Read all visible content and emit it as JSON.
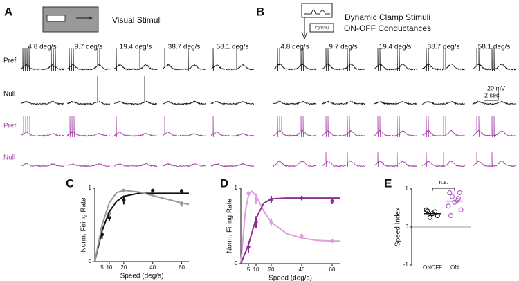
{
  "figure": {
    "panel_A": {
      "label": "A",
      "title": "Visual Stimuli",
      "speeds": [
        "4.8 deg/s",
        "9.7 deg/s",
        "19.4 deg/s",
        "38.7 deg/s",
        "58.1 deg/s"
      ],
      "rows": [
        "Pref",
        "Null",
        "Pref",
        "Null"
      ]
    },
    "panel_B": {
      "label": "B",
      "title_lines": [
        "Dynamic Clamp Stimuli",
        "ON-OFF Conductances"
      ],
      "icon_text": "I=g*(V-E)",
      "speeds": [
        "4.8 deg/s",
        "9.7 deg/s",
        "19.4 deg/s",
        "38.7 deg/s",
        "58.1 deg/s"
      ],
      "scale_bar": [
        "20 mV",
        "2 sec"
      ]
    }
  },
  "chart_data": [
    {
      "type": "line",
      "panel": "C",
      "ylabel": "Norm. Firing Rate",
      "xlabel": "Speed (deg/s)",
      "xlim": [
        0,
        65
      ],
      "ylim": [
        0,
        1
      ],
      "xticks": [
        5,
        10,
        20,
        40,
        60
      ],
      "yticks": [
        0,
        1
      ],
      "series": [
        {
          "color": "#111111",
          "x": [
            5,
            10,
            20,
            40,
            60
          ],
          "values": [
            0.37,
            0.6,
            0.84,
            0.97,
            0.96
          ],
          "errors": [
            0.06,
            0.05,
            0.06,
            0.02,
            0.03
          ]
        },
        {
          "color": "#999999",
          "x": [
            5,
            10,
            20,
            40,
            60
          ],
          "values": [
            0.45,
            0.66,
            0.97,
            0.93,
            0.79
          ],
          "errors": [
            0.05,
            0.05,
            0.02,
            0.02,
            0.04
          ]
        },
        {
          "color": "#111111",
          "style": "fit",
          "x": [
            0,
            5,
            10,
            15,
            20,
            30,
            40,
            50,
            60,
            65
          ],
          "values": [
            0,
            0.42,
            0.68,
            0.82,
            0.89,
            0.93,
            0.93,
            0.93,
            0.93,
            0.93
          ]
        },
        {
          "color": "#999999",
          "style": "fit",
          "x": [
            0,
            5,
            10,
            15,
            20,
            30,
            40,
            50,
            60,
            65
          ],
          "values": [
            0,
            0.5,
            0.8,
            0.94,
            0.97,
            0.95,
            0.9,
            0.85,
            0.8,
            0.78
          ]
        }
      ]
    },
    {
      "type": "line",
      "panel": "D",
      "ylabel": "Norm. Firing Rate",
      "xlabel": "Speed (deg/s)",
      "xlim": [
        0,
        65
      ],
      "ylim": [
        0,
        1
      ],
      "xticks": [
        5,
        10,
        20,
        40,
        60
      ],
      "yticks": [
        0,
        1
      ],
      "series": [
        {
          "color": "#d9a0dc",
          "x": [
            5,
            10,
            20,
            40,
            60
          ],
          "values": [
            0.93,
            0.86,
            0.55,
            0.37,
            0.3
          ],
          "errors": [
            0.03,
            0.07,
            0.05,
            0.03,
            0.02
          ]
        },
        {
          "color": "#8e2f93",
          "x": [
            5,
            10,
            20,
            40,
            60
          ],
          "values": [
            0.22,
            0.55,
            0.85,
            0.87,
            0.83
          ],
          "errors": [
            0.08,
            0.08,
            0.05,
            0.03,
            0.04
          ]
        },
        {
          "color": "#d9a0dc",
          "style": "fit",
          "x": [
            0,
            3,
            5,
            7,
            10,
            15,
            20,
            30,
            40,
            50,
            60,
            65
          ],
          "values": [
            0,
            0.7,
            0.9,
            0.96,
            0.9,
            0.7,
            0.55,
            0.4,
            0.34,
            0.31,
            0.3,
            0.3
          ]
        },
        {
          "color": "#8e2f93",
          "style": "fit",
          "x": [
            0,
            5,
            10,
            15,
            20,
            30,
            40,
            60,
            65
          ],
          "values": [
            0,
            0.25,
            0.6,
            0.8,
            0.86,
            0.87,
            0.87,
            0.87,
            0.87
          ]
        }
      ]
    },
    {
      "type": "strip",
      "panel": "E",
      "ylabel": "Speed Index",
      "ylim": [
        -1,
        1
      ],
      "yticks": [
        -1,
        0,
        1
      ],
      "categories": [
        "ONOFF",
        "ON"
      ],
      "annotation": "n.s.",
      "series": [
        {
          "color": "#111111",
          "values": [
            0.42,
            0.3,
            0.25,
            0.4,
            0.35,
            0.45
          ],
          "mean": 0.35
        },
        {
          "color": "#b05cc0",
          "values": [
            0.9,
            0.9,
            0.8,
            0.7,
            0.65,
            0.55,
            0.45,
            0.3,
            0.75
          ],
          "mean": 0.68
        }
      ]
    }
  ]
}
